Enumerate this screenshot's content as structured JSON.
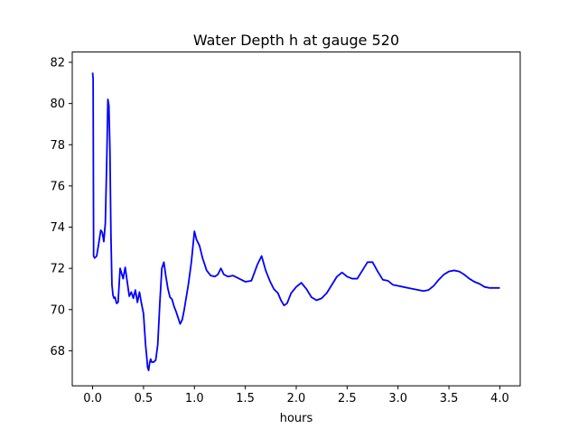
{
  "chart_data": {
    "type": "line",
    "title": "Water Depth h at gauge 520",
    "xlabel": "hours",
    "ylabel": "",
    "xlim": [
      -0.2,
      4.2
    ],
    "ylim": [
      66.3,
      82.5
    ],
    "x_ticks": [
      0.0,
      0.5,
      1.0,
      1.5,
      2.0,
      2.5,
      3.0,
      3.5,
      4.0
    ],
    "x_tick_labels": [
      "0.0",
      "0.5",
      "1.0",
      "1.5",
      "2.0",
      "2.5",
      "3.0",
      "3.5",
      "4.0"
    ],
    "y_ticks": [
      68,
      70,
      72,
      74,
      76,
      78,
      80,
      82
    ],
    "y_tick_labels": [
      "68",
      "70",
      "72",
      "74",
      "76",
      "78",
      "80",
      "82"
    ],
    "grid": false,
    "legend": "none",
    "series": [
      {
        "color": "#0000ff",
        "x": [
          0.0,
          0.005,
          0.01,
          0.02,
          0.04,
          0.06,
          0.08,
          0.095,
          0.11,
          0.125,
          0.14,
          0.15,
          0.16,
          0.17,
          0.18,
          0.19,
          0.2,
          0.21,
          0.22,
          0.235,
          0.25,
          0.27,
          0.3,
          0.32,
          0.34,
          0.36,
          0.38,
          0.4,
          0.42,
          0.44,
          0.46,
          0.48,
          0.5,
          0.52,
          0.53,
          0.54,
          0.55,
          0.56,
          0.57,
          0.58,
          0.6,
          0.62,
          0.64,
          0.66,
          0.68,
          0.7,
          0.72,
          0.74,
          0.76,
          0.78,
          0.8,
          0.82,
          0.84,
          0.86,
          0.88,
          0.9,
          0.94,
          0.97,
          1.0,
          1.02,
          1.05,
          1.08,
          1.12,
          1.16,
          1.2,
          1.23,
          1.26,
          1.29,
          1.33,
          1.38,
          1.44,
          1.5,
          1.56,
          1.62,
          1.66,
          1.7,
          1.74,
          1.78,
          1.82,
          1.85,
          1.88,
          1.91,
          1.95,
          2.0,
          2.05,
          2.1,
          2.15,
          2.2,
          2.25,
          2.3,
          2.35,
          2.4,
          2.45,
          2.5,
          2.55,
          2.6,
          2.65,
          2.7,
          2.75,
          2.8,
          2.85,
          2.9,
          2.95,
          3.0,
          3.05,
          3.1,
          3.15,
          3.2,
          3.25,
          3.3,
          3.35,
          3.4,
          3.45,
          3.5,
          3.55,
          3.6,
          3.65,
          3.7,
          3.75,
          3.8,
          3.85,
          3.9,
          3.95,
          4.0
        ],
        "y": [
          81.5,
          81.2,
          72.6,
          72.5,
          72.6,
          73.2,
          73.85,
          73.75,
          73.3,
          74.2,
          77.5,
          80.2,
          79.9,
          77.8,
          73.6,
          71.2,
          70.7,
          70.55,
          70.6,
          70.3,
          70.35,
          72.0,
          71.5,
          72.05,
          71.35,
          70.65,
          70.85,
          70.55,
          70.95,
          70.35,
          70.85,
          70.3,
          69.8,
          68.3,
          67.8,
          67.2,
          67.05,
          67.4,
          67.6,
          67.45,
          67.45,
          67.55,
          68.3,
          70.3,
          72.0,
          72.3,
          71.6,
          71.0,
          70.6,
          70.5,
          70.15,
          69.9,
          69.6,
          69.3,
          69.5,
          70.0,
          71.2,
          72.3,
          73.8,
          73.4,
          73.1,
          72.5,
          71.9,
          71.65,
          71.6,
          71.7,
          72.0,
          71.7,
          71.6,
          71.65,
          71.5,
          71.35,
          71.4,
          72.2,
          72.6,
          71.9,
          71.4,
          71.0,
          70.8,
          70.45,
          70.2,
          70.3,
          70.8,
          71.1,
          71.3,
          71.0,
          70.6,
          70.45,
          70.55,
          70.8,
          71.2,
          71.6,
          71.8,
          71.6,
          71.5,
          71.5,
          71.9,
          72.3,
          72.3,
          71.85,
          71.45,
          71.4,
          71.2,
          71.15,
          71.1,
          71.05,
          71.0,
          70.95,
          70.9,
          70.95,
          71.15,
          71.45,
          71.7,
          71.85,
          71.9,
          71.85,
          71.7,
          71.5,
          71.35,
          71.25,
          71.1,
          71.05,
          71.05,
          71.05
        ]
      }
    ]
  }
}
